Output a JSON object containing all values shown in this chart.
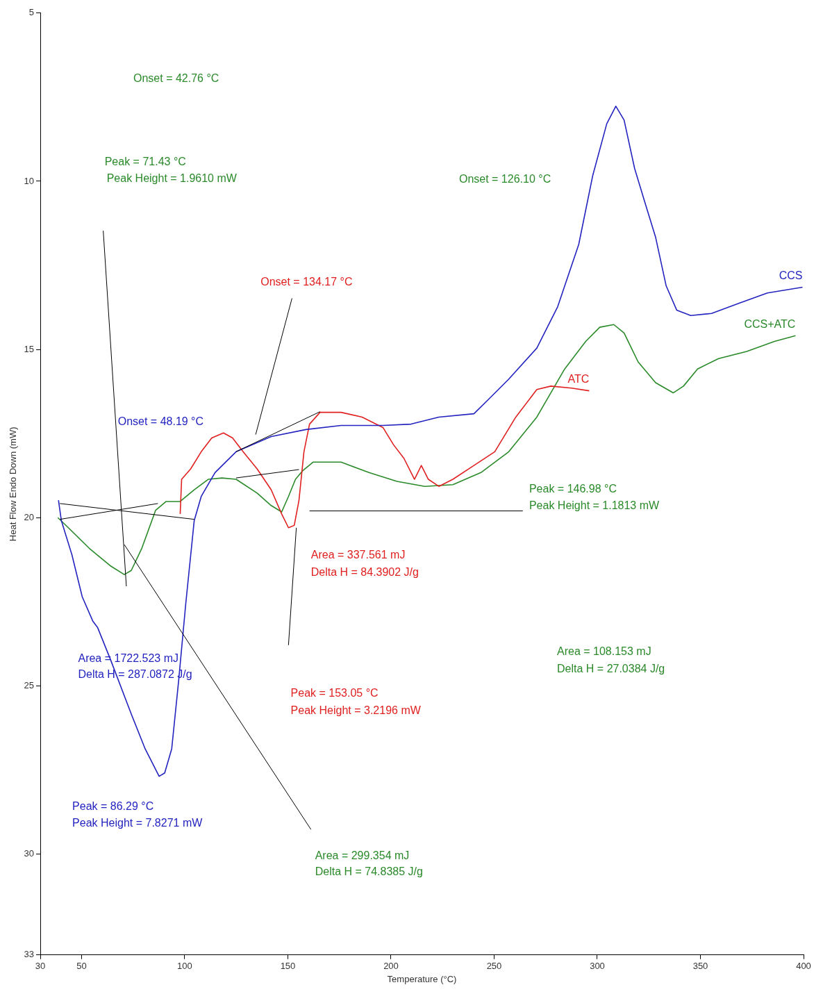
{
  "chart_data": {
    "type": "line",
    "xlabel": "Temperature (°C)",
    "ylabel": "Heat Flow Endo Down (mW)",
    "xlim": [
      30,
      400
    ],
    "xticks": [
      30,
      50,
      100,
      150,
      200,
      250,
      300,
      350,
      400
    ],
    "ylim": [
      33,
      5
    ],
    "yticks": [
      5,
      10,
      15,
      20,
      25,
      30,
      33
    ],
    "grid": false,
    "legend": false,
    "marker": "none",
    "line_style": "solid",
    "annotations": [
      "Onset = 48.19 °C",
      "Area = 1722.523 mJ",
      "Delta H = 287.0872 J/g",
      "Peak = 86.29 °C",
      "Peak Height = 7.8271 mW",
      "Onset = 134.17 °C",
      "Area = 337.561 mJ",
      "Delta H = 84.3902 J/g",
      "Peak = 153.05 °C",
      "Peak Height = 3.2196 mW",
      "Onset = 42.76 °C",
      "Peak = 71.43 °C",
      "Peak Height = 1.9610 mW",
      "Onset = 126.10 °C",
      "Peak = 146.98 °C",
      "Peak Height = 1.1813 mW",
      "Area = 108.153 mJ",
      "Delta H = 27.0384 J/g",
      "Area = 299.354 mJ",
      "Delta H = 74.8385 J/g"
    ],
    "series": [
      {
        "name": "CCS",
        "color": "#2323c0",
        "x": [
          38.8,
          40.2,
          45.3,
          50.3,
          55.4,
          57.8,
          63.9,
          74.1,
          80.8,
          87.6,
          90.3,
          93.7,
          97.1,
          100.5,
          104.6,
          108,
          114.7,
          124.9,
          141.9,
          158.8,
          175.8,
          196.1,
          209.7,
          223.2,
          240.2,
          247,
          257.1,
          270.7,
          280.8,
          291,
          297.8,
          304.6,
          309,
          313,
          318.1,
          323.2,
          328.3,
          333.4,
          338.5,
          345.3,
          355.4,
          369,
          382.5,
          399.5
        ],
        "values": [
          19.48,
          20.09,
          21.1,
          22.35,
          23.07,
          23.27,
          24.2,
          25.84,
          26.87,
          27.69,
          27.59,
          26.87,
          24.82,
          22.56,
          20.09,
          19.37,
          18.66,
          18.04,
          17.59,
          17.38,
          17.26,
          17.26,
          17.22,
          17.01,
          16.91,
          16.5,
          15.88,
          14.96,
          13.73,
          11.88,
          9.83,
          8.29,
          7.77,
          8.18,
          9.62,
          10.65,
          11.67,
          13.11,
          13.83,
          13.99,
          13.93,
          13.62,
          13.32,
          13.15
        ]
      },
      {
        "name": "ATC",
        "color": "#e02020",
        "x": [
          97.8,
          98.5,
          102.9,
          108,
          113.1,
          118.8,
          123.2,
          128.3,
          135.1,
          141.9,
          147,
          150.3,
          153.1,
          155.4,
          157.8,
          160.5,
          165.6,
          175.8,
          186,
          196.1,
          201.2,
          206.3,
          211.4,
          214.7,
          218.1,
          223.2,
          230,
          240.2,
          250.3,
          260.5,
          270.7,
          277.5,
          287.6,
          296.1
        ],
        "values": [
          19.89,
          18.86,
          18.55,
          18.04,
          17.63,
          17.48,
          17.63,
          18.04,
          18.55,
          19.17,
          19.89,
          20.3,
          20.23,
          19.48,
          18.04,
          17.22,
          16.87,
          16.87,
          17.01,
          17.32,
          17.83,
          18.24,
          18.86,
          18.45,
          18.86,
          19.07,
          18.86,
          18.45,
          18.04,
          17.01,
          16.19,
          16.09,
          16.15,
          16.23
        ]
      },
      {
        "name": "CCS+ATC",
        "color": "#2a8a2a",
        "x": [
          38.5,
          43.6,
          53.7,
          63.9,
          70.7,
          74.1,
          79.2,
          85.9,
          91,
          97.8,
          104.6,
          111.4,
          118.1,
          124.9,
          135.1,
          141.9,
          147,
          150.3,
          153.7,
          157.1,
          162.2,
          175.8,
          189.3,
          202.9,
          216.4,
          230,
          243.6,
          257.1,
          270.7,
          284.2,
          294.4,
          301.2,
          308,
          313,
          319.8,
          328.3,
          336.8,
          341.8,
          348.6,
          358.8,
          372.4,
          385.9,
          396.1
        ],
        "values": [
          20.0,
          20.3,
          20.91,
          21.43,
          21.69,
          21.57,
          20.91,
          19.78,
          19.52,
          19.52,
          19.17,
          18.86,
          18.82,
          18.86,
          19.27,
          19.64,
          19.83,
          19.37,
          18.86,
          18.61,
          18.35,
          18.35,
          18.66,
          18.92,
          19.07,
          19.02,
          18.66,
          18.04,
          17.01,
          15.58,
          14.76,
          14.34,
          14.26,
          14.51,
          15.37,
          15.99,
          16.29,
          16.09,
          15.58,
          15.27,
          15.06,
          14.76,
          14.59
        ]
      },
      {
        "color": "#000000",
        "x": [
          39.5,
          104.6
        ],
        "values": [
          19.58,
          20.05
        ]
      },
      {
        "color": "#000000",
        "x": [
          39.5,
          87
        ],
        "values": [
          20.05,
          19.58
        ]
      },
      {
        "color": "#000000",
        "x": [
          60.5,
          71.7
        ],
        "values": [
          11.47,
          22.04
        ]
      },
      {
        "color": "#000000",
        "x": [
          70.7,
          161.2
        ],
        "values": [
          20.8,
          29.27
        ]
      },
      {
        "color": "#000000",
        "x": [
          152.0,
          134.4
        ],
        "values": [
          13.48,
          17.53
        ]
      },
      {
        "color": "#000000",
        "x": [
          160.5,
          263.9
        ],
        "values": [
          19.8,
          19.8
        ]
      },
      {
        "color": "#000000",
        "x": [
          124.9,
          165.6
        ],
        "values": [
          18.04,
          16.85
        ]
      },
      {
        "color": "#000000",
        "x": [
          124.9,
          155.4
        ],
        "values": [
          18.82,
          18.57
        ]
      },
      {
        "color": "#000000",
        "x": [
          154.1,
          150.3
        ],
        "values": [
          20.3,
          23.79
        ]
      }
    ]
  }
}
